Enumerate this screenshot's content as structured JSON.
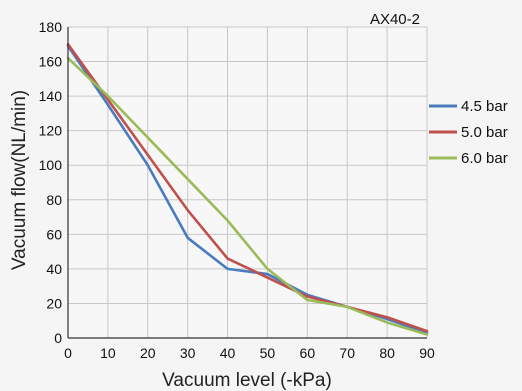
{
  "chart_data": {
    "type": "line",
    "title": "",
    "annotation": "AX40-2",
    "xlabel": "Vacuum level (-kPa)",
    "ylabel": "Vacuum flow(NL/min)",
    "xlim": [
      0,
      90
    ],
    "ylim": [
      0,
      180
    ],
    "x_ticks": [
      0,
      10,
      20,
      30,
      40,
      50,
      60,
      70,
      80,
      90
    ],
    "y_ticks": [
      0,
      20,
      40,
      60,
      80,
      100,
      120,
      140,
      160,
      180
    ],
    "grid": true,
    "legend_position": "right",
    "series": [
      {
        "name": " 4.5 bar",
        "color": "#4a7bbf",
        "x": [
          0,
          10,
          20,
          30,
          40,
          50,
          60,
          70,
          80,
          90
        ],
        "y": [
          169,
          135,
          100,
          58,
          40,
          37,
          25,
          18,
          11,
          3
        ]
      },
      {
        "name": "5.0 bar",
        "color": "#c0504d",
        "x": [
          0,
          10,
          20,
          30,
          40,
          50,
          60,
          70,
          80,
          90
        ],
        "y": [
          170,
          138,
          106,
          74,
          46,
          35,
          24,
          18,
          12,
          4
        ]
      },
      {
        "name": "6.0 bar",
        "color": "#9bbb59",
        "x": [
          0,
          10,
          20,
          30,
          40,
          50,
          60,
          70,
          80,
          90
        ],
        "y": [
          162,
          140,
          116,
          92,
          68,
          40,
          22,
          18,
          9,
          2
        ]
      }
    ]
  }
}
